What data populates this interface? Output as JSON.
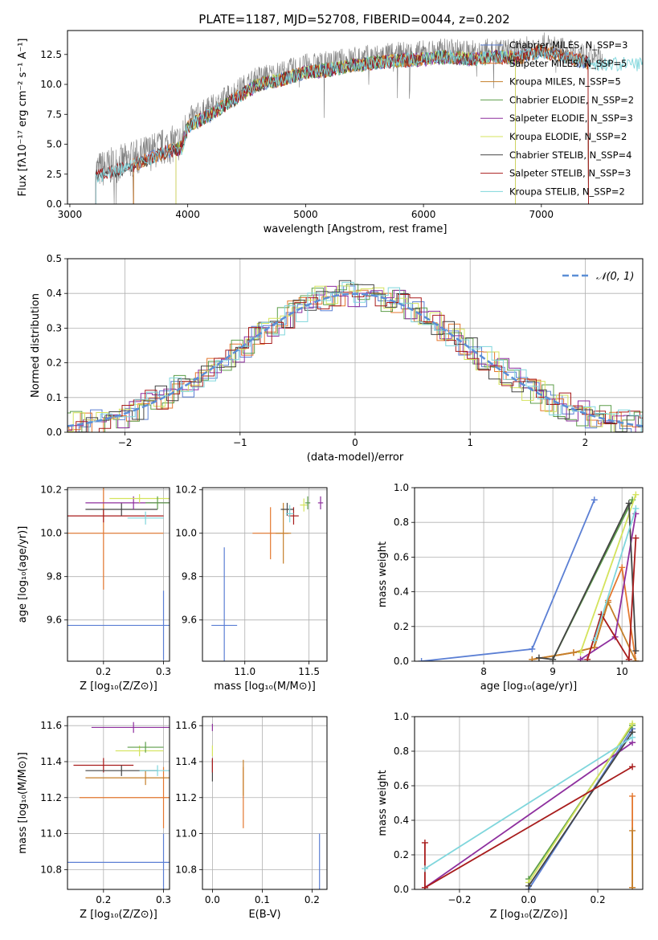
{
  "figure": {
    "title": "PLATE=1187, MJD=52708, FIBERID=0044, z=0.202"
  },
  "palette": {
    "Chabrier MILES": "#5b7fd4",
    "Salpeter MILES": "#e4772f",
    "Kroupa MILES": "#c57f2a",
    "Chabrier ELODIE": "#5d9e4a",
    "Salpeter ELODIE": "#8e2f9e",
    "Kroupa ELODIE": "#d4e35c",
    "Chabrier STELIB": "#444444",
    "Salpeter STELIB": "#a81c1c",
    "Kroupa STELIB": "#7fd6dc",
    "data": "#808080",
    "normal": "#5b8ed6"
  },
  "chart_data": [
    {
      "id": "spectrum",
      "type": "line",
      "xlabel": "wavelength [Angstrom, rest frame]",
      "ylabel": "Flux [fλ10⁻¹⁷ erg cm⁻² s⁻¹ A⁻¹]",
      "xlim": [
        2980,
        7860
      ],
      "ylim": [
        0,
        14.5
      ],
      "xticks": [
        3000,
        4000,
        5000,
        6000,
        7000
      ],
      "xticklabels": [
        "3000",
        "4000",
        "5000",
        "6000",
        "7000"
      ],
      "yticks": [
        0,
        2.5,
        5,
        7.5,
        10,
        12.5
      ],
      "yticklabels": [
        "0.0",
        "2.5",
        "5.0",
        "7.5",
        "10.0",
        "12.5"
      ],
      "grid": false,
      "legend_position": "right",
      "continuum": {
        "x": [
          3220,
          3400,
          3600,
          3800,
          3950,
          4000,
          4200,
          4400,
          4600,
          4800,
          5000,
          5200,
          5400,
          5600,
          5800,
          6000,
          6200,
          6400,
          6600,
          6800,
          7000,
          7200,
          7400,
          7500,
          7860
        ],
        "y": [
          2.8,
          3.3,
          4.0,
          4.8,
          5.2,
          7.0,
          8.0,
          9.3,
          10.5,
          10.9,
          11.5,
          11.7,
          12.1,
          12.3,
          12.5,
          12.6,
          12.8,
          12.6,
          12.8,
          12.7,
          13.3,
          12.8,
          12.3,
          12.2,
          12.2
        ]
      },
      "series": [
        {
          "name": "Chabrier MILES, N_SSP=3",
          "start": 3540,
          "end": 7400
        },
        {
          "name": "Salpeter MILES, N_SSP=5",
          "start": 3540,
          "end": 7400
        },
        {
          "name": "Kroupa MILES, N_SSP=5",
          "start": 3540,
          "end": 7400
        },
        {
          "name": "Chabrier ELODIE, N_SSP=2",
          "start": 3900,
          "end": 6780
        },
        {
          "name": "Salpeter ELODIE, N_SSP=3",
          "start": 3900,
          "end": 6780
        },
        {
          "name": "Kroupa ELODIE, N_SSP=2",
          "start": 3900,
          "end": 6780
        },
        {
          "name": "Chabrier STELIB, N_SSP=4",
          "start": 3220,
          "end": 7400
        },
        {
          "name": "Salpeter STELIB, N_SSP=3",
          "start": 3220,
          "end": 7400
        },
        {
          "name": "Kroupa STELIB, N_SSP=2",
          "start": 3220,
          "end": 7860
        }
      ]
    },
    {
      "id": "residuals",
      "type": "line",
      "xlabel": "(data-model)/error",
      "ylabel": "Normed distribution",
      "xlim": [
        -2.5,
        2.5
      ],
      "ylim": [
        0,
        0.5
      ],
      "xticks": [
        -2,
        -1,
        0,
        1,
        2
      ],
      "xticklabels": [
        "−2",
        "−1",
        "0",
        "1",
        "2"
      ],
      "yticks": [
        0,
        0.1,
        0.2,
        0.3,
        0.4,
        0.5
      ],
      "yticklabels": [
        "0.0",
        "0.1",
        "0.2",
        "0.3",
        "0.4",
        "0.5"
      ],
      "grid": true,
      "legend": "𝒩(0, 1)",
      "legend_position": "top-right"
    },
    {
      "id": "age_vs_z",
      "type": "errorbar",
      "xlabel": "Z [log₁₀(Z/Z⊙)]",
      "ylabel": "age  [log₁₀(age/yr)]",
      "xlim": [
        0.14,
        0.31
      ],
      "ylim": [
        9.41,
        10.21
      ],
      "xticks": [
        0.2,
        0.3
      ],
      "xticklabels": [
        "0.2",
        "0.3"
      ],
      "yticks": [
        9.6,
        9.8,
        10.0,
        10.2
      ],
      "yticklabels": [
        "9.6",
        "9.8",
        "10.0",
        "10.2"
      ],
      "grid": true,
      "points": [
        {
          "x": 0.3,
          "y": 9.575,
          "xerr": 0.16,
          "yerr": 0.16,
          "model": "Chabrier MILES"
        },
        {
          "x": 0.2,
          "y": 10.0,
          "xerr": 0.1,
          "yerr": 0.26,
          "model": "Salpeter MILES"
        },
        {
          "x": 0.2,
          "y": 10.08,
          "xerr": 0.1,
          "yerr": 0.03,
          "model": "Salpeter STELIB"
        },
        {
          "x": 0.23,
          "y": 10.11,
          "xerr": 0.06,
          "yerr": 0.03,
          "model": "Chabrier STELIB"
        },
        {
          "x": 0.25,
          "y": 10.14,
          "xerr": 0.08,
          "yerr": 0.03,
          "model": "Salpeter ELODIE"
        },
        {
          "x": 0.26,
          "y": 10.16,
          "xerr": 0.05,
          "yerr": 0.02,
          "model": "Kroupa ELODIE"
        },
        {
          "x": 0.27,
          "y": 10.07,
          "xerr": 0.03,
          "yerr": 0.03,
          "model": "Kroupa STELIB"
        },
        {
          "x": 0.29,
          "y": 10.14,
          "xerr": 0.02,
          "yerr": 0.03,
          "model": "Chabrier ELODIE"
        }
      ]
    },
    {
      "id": "age_vs_mass",
      "type": "errorbar",
      "xlabel": "mass [log₁₀(M/M⊙)]",
      "ylabel": "",
      "xlim": [
        10.67,
        11.64
      ],
      "ylim": [
        9.41,
        10.21
      ],
      "xticks": [
        11.0,
        11.5
      ],
      "xticklabels": [
        "11.0",
        "11.5"
      ],
      "yticks": [
        9.6,
        9.8,
        10.0,
        10.2
      ],
      "yticklabels": [
        "9.6",
        "9.8",
        "10.0",
        "10.2"
      ],
      "grid": true,
      "points": [
        {
          "x": 10.84,
          "y": 9.575,
          "xerr": 0.1,
          "yerr": 0.36,
          "model": "Chabrier MILES"
        },
        {
          "x": 11.2,
          "y": 10.0,
          "xerr": 0.14,
          "yerr": 0.12,
          "model": "Salpeter MILES"
        },
        {
          "x": 11.3,
          "y": 10.0,
          "xerr": 0.06,
          "yerr": 0.14,
          "model": "Kroupa MILES"
        },
        {
          "x": 11.38,
          "y": 10.08,
          "xerr": 0.04,
          "yerr": 0.04,
          "model": "Salpeter STELIB"
        },
        {
          "x": 11.33,
          "y": 10.11,
          "xerr": 0.05,
          "yerr": 0.03,
          "model": "Chabrier STELIB"
        },
        {
          "x": 11.59,
          "y": 10.14,
          "xerr": 0.02,
          "yerr": 0.03,
          "model": "Salpeter ELODIE"
        },
        {
          "x": 11.46,
          "y": 10.13,
          "xerr": 0.03,
          "yerr": 0.03,
          "model": "Kroupa ELODIE"
        },
        {
          "x": 11.49,
          "y": 10.14,
          "xerr": 0.02,
          "yerr": 0.03,
          "model": "Chabrier ELODIE"
        },
        {
          "x": 11.35,
          "y": 10.09,
          "xerr": 0.03,
          "yerr": 0.04,
          "model": "Kroupa STELIB"
        }
      ]
    },
    {
      "id": "mass_weight_vs_age",
      "type": "line",
      "xlabel": "age  [log₁₀(age/yr)]",
      "ylabel": "mass weight",
      "xlim": [
        7.0,
        10.3
      ],
      "ylim": [
        0,
        1
      ],
      "xticks": [
        8,
        9,
        10
      ],
      "xticklabels": [
        "8",
        "9",
        "10"
      ],
      "yticks": [
        0,
        0.2,
        0.4,
        0.6,
        0.8,
        1.0
      ],
      "yticklabels": [
        "0.0",
        "0.2",
        "0.4",
        "0.6",
        "0.8",
        "1.0"
      ],
      "grid": true,
      "series": [
        {
          "name": "Chabrier MILES",
          "x": [
            7.1,
            8.7,
            9.6
          ],
          "y": [
            0.0,
            0.07,
            0.93
          ]
        },
        {
          "name": "Salpeter MILES",
          "x": [
            8.7,
            9.3,
            9.6,
            9.8,
            10.0,
            10.2
          ],
          "y": [
            0.01,
            0.05,
            0.08,
            0.35,
            0.54,
            0.0
          ]
        },
        {
          "name": "Kroupa MILES",
          "x": [
            8.7,
            9.3,
            9.6,
            9.8,
            10.2
          ],
          "y": [
            0.01,
            0.05,
            0.08,
            0.34,
            0.0
          ]
        },
        {
          "name": "Chabrier ELODIE",
          "x": [
            9.0,
            10.15
          ],
          "y": [
            0.01,
            0.93
          ]
        },
        {
          "name": "Salpeter ELODIE",
          "x": [
            9.4,
            9.9,
            10.2
          ],
          "y": [
            0.01,
            0.14,
            0.85
          ]
        },
        {
          "name": "Kroupa ELODIE",
          "x": [
            9.4,
            10.2
          ],
          "y": [
            0.05,
            0.96
          ]
        },
        {
          "name": "Chabrier STELIB",
          "x": [
            8.8,
            9.0,
            10.1,
            10.2
          ],
          "y": [
            0.02,
            0.01,
            0.91,
            0.06
          ]
        },
        {
          "name": "Salpeter STELIB",
          "x": [
            9.5,
            9.7,
            10.1,
            10.2
          ],
          "y": [
            0.01,
            0.27,
            0.01,
            0.71
          ]
        },
        {
          "name": "Kroupa STELIB",
          "x": [
            9.6,
            10.2
          ],
          "y": [
            0.12,
            0.88
          ]
        }
      ]
    },
    {
      "id": "mass_vs_z",
      "type": "errorbar",
      "xlabel": "Z [log₁₀(Z/Z⊙)]",
      "ylabel": "mass [log₁₀(M/M⊙)]",
      "xlim": [
        0.14,
        0.31
      ],
      "ylim": [
        10.69,
        11.65
      ],
      "xticks": [
        0.2,
        0.3
      ],
      "xticklabels": [
        "0.2",
        "0.3"
      ],
      "yticks": [
        10.8,
        11.0,
        11.2,
        11.4,
        11.6
      ],
      "yticklabels": [
        "10.8",
        "11.0",
        "11.2",
        "11.4",
        "11.6"
      ],
      "grid": true,
      "points": [
        {
          "x": 0.3,
          "y": 10.84,
          "xerr": 0.16,
          "yerr": 0.16,
          "model": "Chabrier MILES"
        },
        {
          "x": 0.3,
          "y": 11.2,
          "xerr": 0.14,
          "yerr": 0.17,
          "model": "Salpeter MILES"
        },
        {
          "x": 0.2,
          "y": 11.38,
          "xerr": 0.05,
          "yerr": 0.04,
          "model": "Salpeter STELIB"
        },
        {
          "x": 0.27,
          "y": 11.31,
          "xerr": 0.1,
          "yerr": 0.04,
          "model": "Kroupa MILES"
        },
        {
          "x": 0.23,
          "y": 11.35,
          "xerr": 0.06,
          "yerr": 0.03,
          "model": "Chabrier STELIB"
        },
        {
          "x": 0.25,
          "y": 11.59,
          "xerr": 0.07,
          "yerr": 0.03,
          "model": "Salpeter ELODIE"
        },
        {
          "x": 0.26,
          "y": 11.46,
          "xerr": 0.04,
          "yerr": 0.03,
          "model": "Kroupa ELODIE"
        },
        {
          "x": 0.27,
          "y": 11.48,
          "xerr": 0.03,
          "yerr": 0.03,
          "model": "Chabrier ELODIE"
        },
        {
          "x": 0.29,
          "y": 11.35,
          "xerr": 0.03,
          "yerr": 0.03,
          "model": "Kroupa STELIB"
        }
      ]
    },
    {
      "id": "mass_vs_ebv",
      "type": "errorbar",
      "xlabel": "E(B-V)",
      "ylabel": "",
      "xlim": [
        -0.02,
        0.23
      ],
      "ylim": [
        10.69,
        11.65
      ],
      "xticks": [
        0.0,
        0.1,
        0.2
      ],
      "xticklabels": [
        "0.0",
        "0.1",
        "0.2"
      ],
      "yticks": [
        10.8,
        11.0,
        11.2,
        11.4,
        11.6
      ],
      "yticklabels": [
        "10.8",
        "11.0",
        "11.2",
        "11.4",
        "11.6"
      ],
      "grid": true,
      "points": [
        {
          "x": 0.215,
          "y": 10.84,
          "xerr": 0,
          "yerr": 0.16,
          "model": "Chabrier MILES"
        },
        {
          "x": 0.062,
          "y": 11.2,
          "xerr": 0,
          "yerr": 0.17,
          "model": "Salpeter MILES"
        },
        {
          "x": 0.062,
          "y": 11.31,
          "xerr": 0,
          "yerr": 0.1,
          "model": "Kroupa MILES"
        },
        {
          "x": 0.0,
          "y": 11.59,
          "xerr": 0,
          "yerr": 0.02,
          "model": "Salpeter ELODIE"
        },
        {
          "x": 0.0,
          "y": 11.46,
          "xerr": 0,
          "yerr": 0.03,
          "model": "Kroupa ELODIE"
        },
        {
          "x": 0.0,
          "y": 11.35,
          "xerr": 0,
          "yerr": 0.06,
          "model": "Chabrier STELIB"
        },
        {
          "x": 0.0,
          "y": 11.38,
          "xerr": 0,
          "yerr": 0.04,
          "model": "Salpeter STELIB"
        }
      ]
    },
    {
      "id": "mass_weight_vs_z",
      "type": "line",
      "xlabel": "Z [log₁₀(Z/Z⊙)]",
      "ylabel": "mass weight",
      "xlim": [
        -0.33,
        0.33
      ],
      "ylim": [
        0,
        1
      ],
      "xticks": [
        -0.2,
        0.0,
        0.2
      ],
      "xticklabels": [
        "−0.2",
        "0.0",
        "0.2"
      ],
      "yticks": [
        0,
        0.2,
        0.4,
        0.6,
        0.8,
        1.0
      ],
      "yticklabels": [
        "0.0",
        "0.2",
        "0.4",
        "0.6",
        "0.8",
        "1.0"
      ],
      "grid": true,
      "series": [
        {
          "name": "Chabrier MILES",
          "x": [
            0.0,
            0.3
          ],
          "y": [
            0.0,
            0.93
          ]
        },
        {
          "name": "Salpeter MILES",
          "x": [
            0.3,
            0.3
          ],
          "y": [
            0.01,
            0.54
          ]
        },
        {
          "name": "Kroupa MILES",
          "x": [
            0.3,
            0.3
          ],
          "y": [
            0.01,
            0.34
          ]
        },
        {
          "name": "Chabrier ELODIE",
          "x": [
            0.0,
            0.3
          ],
          "y": [
            0.06,
            0.95
          ]
        },
        {
          "name": "Salpeter ELODIE",
          "x": [
            -0.3,
            0.3
          ],
          "y": [
            0.01,
            0.85
          ]
        },
        {
          "name": "Kroupa ELODIE",
          "x": [
            0.0,
            0.3
          ],
          "y": [
            0.04,
            0.96
          ]
        },
        {
          "name": "Chabrier STELIB",
          "x": [
            0.0,
            0.3
          ],
          "y": [
            0.02,
            0.91
          ]
        },
        {
          "name": "Salpeter STELIB",
          "x": [
            -0.3,
            -0.3,
            0.3
          ],
          "y": [
            0.27,
            0.01,
            0.71
          ]
        },
        {
          "name": "Kroupa STELIB",
          "x": [
            -0.3,
            0.3
          ],
          "y": [
            0.12,
            0.88
          ]
        }
      ]
    }
  ]
}
